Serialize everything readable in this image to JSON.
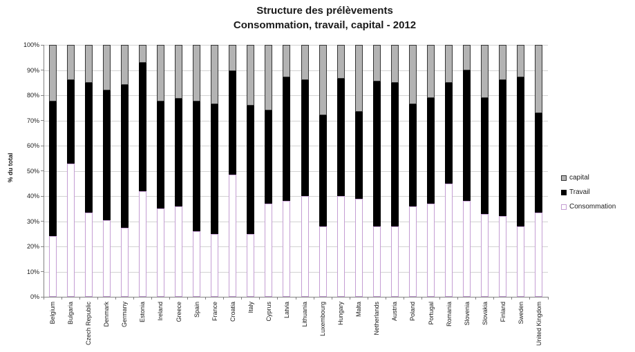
{
  "chart_data": {
    "type": "bar",
    "stacked": true,
    "title": "Structure des prélèvements",
    "subtitle": "Consommation, travail, capital - 2012",
    "ylabel": "% du total",
    "xlabel": "",
    "ylim": [
      0,
      100
    ],
    "ytick_step": 10,
    "yticks": [
      "0%",
      "10%",
      "20%",
      "30%",
      "40%",
      "50%",
      "60%",
      "70%",
      "80%",
      "90%",
      "100%"
    ],
    "grid": true,
    "legend_position": "right",
    "legend_order": [
      "capital",
      "Travail",
      "Consommation"
    ],
    "categories": [
      "Belgium",
      "Bulgaria",
      "Czech Republic",
      "Denmark",
      "Germany",
      "Estonia",
      "Ireland",
      "Greece",
      "Spain",
      "France",
      "Croatia",
      "Italy",
      "Cyprus",
      "Latvia",
      "Lithuania",
      "Luxembourg",
      "Hungary",
      "Malta",
      "Netherlands",
      "Austria",
      "Poland",
      "Portugal",
      "Romania",
      "Slovenia",
      "Slovakia",
      "Finland",
      "Sweden",
      "United Kingdom"
    ],
    "series": [
      {
        "name": "Consommation",
        "fill": "#ffffff",
        "border": "#c49dd3",
        "values": [
          24,
          53,
          33.5,
          30.5,
          27.5,
          42,
          35,
          36,
          26,
          25,
          48.5,
          25,
          37,
          38,
          40,
          28,
          40,
          39,
          28,
          28,
          36,
          37,
          45,
          38,
          33,
          32,
          28,
          33.5
        ]
      },
      {
        "name": "Travail",
        "fill": "#000000",
        "border": "#000000",
        "values": [
          53.5,
          33,
          51.5,
          51.5,
          56.5,
          51,
          42.5,
          42.5,
          51.5,
          51.5,
          41,
          51,
          37,
          49,
          46,
          44,
          46.5,
          34.5,
          57.5,
          57,
          40.5,
          42,
          40,
          52,
          46,
          54,
          59,
          39.5
        ]
      },
      {
        "name": "capital",
        "fill": "#b3b3b3",
        "border": "#333333",
        "values": [
          22.5,
          14,
          15,
          18,
          16,
          7,
          22.5,
          21.5,
          22.5,
          23.5,
          10.5,
          24,
          26,
          13,
          14,
          28,
          13.5,
          26.5,
          14.5,
          15,
          23.5,
          21,
          15,
          10,
          21,
          14,
          13,
          27
        ]
      }
    ],
    "colors": {
      "grid": "#d2d2d2",
      "axis": "#808080",
      "text": "#1a1a1a",
      "background": "#ffffff"
    }
  }
}
